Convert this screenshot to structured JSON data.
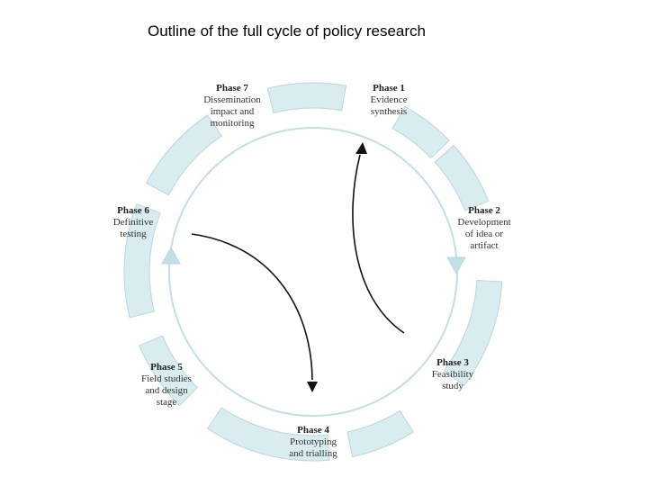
{
  "title": "Outline of the full cycle of policy research",
  "colors": {
    "segment_fill": "#d9edf1",
    "segment_stroke": "#b7d8df",
    "ring": "#c2dfe6",
    "arrow": "#111111"
  },
  "phases": [
    {
      "head": "Phase 1",
      "lines": [
        "Evidence",
        "synthesis"
      ]
    },
    {
      "head": "Phase 2",
      "lines": [
        "Development",
        "of idea or",
        "artifact"
      ]
    },
    {
      "head": "Phase 3",
      "lines": [
        "Feasibility",
        "study"
      ]
    },
    {
      "head": "Phase 4",
      "lines": [
        "Prototyping",
        "and trialling"
      ]
    },
    {
      "head": "Phase 5",
      "lines": [
        "Field studies",
        "and design",
        "stage"
      ]
    },
    {
      "head": "Phase 6",
      "lines": [
        "Definitive",
        "testing"
      ]
    },
    {
      "head": "Phase 7",
      "lines": [
        "Dissemination",
        "impact and",
        "monitoring"
      ]
    }
  ]
}
